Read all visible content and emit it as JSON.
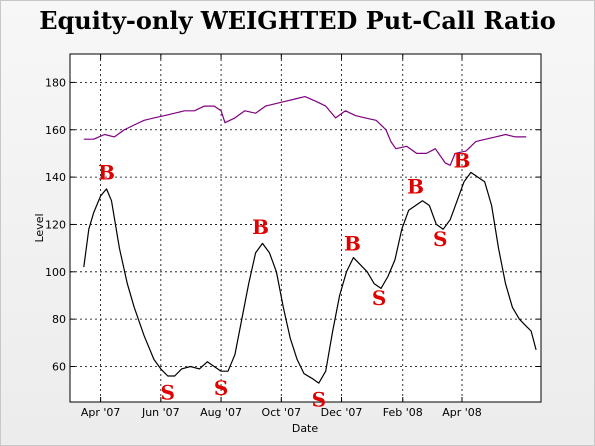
{
  "chart_data": {
    "type": "line",
    "title": "Equity-only WEIGHTED Put-Call Ratio",
    "xlabel": "Date",
    "ylabel": "Level",
    "ylim": [
      45,
      192
    ],
    "xlim": [
      "2007-03-01",
      "2008-06-20"
    ],
    "grid": true,
    "x_ticks": [
      {
        "label": "Apr '07",
        "date": "2007-04-01"
      },
      {
        "label": "Jun '07",
        "date": "2007-06-01"
      },
      {
        "label": "Aug '07",
        "date": "2007-08-01"
      },
      {
        "label": "Oct '07",
        "date": "2007-10-01"
      },
      {
        "label": "Dec '07",
        "date": "2007-12-01"
      },
      {
        "label": "Feb '08",
        "date": "2008-02-01"
      },
      {
        "label": "Apr '08",
        "date": "2008-04-01"
      }
    ],
    "y_ticks": [
      60,
      80,
      100,
      120,
      140,
      160,
      180
    ],
    "series": [
      {
        "color": "#800080",
        "points": [
          [
            "2007-03-15",
            156
          ],
          [
            "2007-03-25",
            156
          ],
          [
            "2007-04-05",
            158
          ],
          [
            "2007-04-15",
            157
          ],
          [
            "2007-04-25",
            160
          ],
          [
            "2007-05-05",
            162
          ],
          [
            "2007-05-15",
            164
          ],
          [
            "2007-05-25",
            165
          ],
          [
            "2007-06-05",
            166
          ],
          [
            "2007-06-15",
            167
          ],
          [
            "2007-06-25",
            168
          ],
          [
            "2007-07-05",
            168
          ],
          [
            "2007-07-15",
            170
          ],
          [
            "2007-07-25",
            170
          ],
          [
            "2007-08-01",
            168
          ],
          [
            "2007-08-05",
            163
          ],
          [
            "2007-08-15",
            165
          ],
          [
            "2007-08-25",
            168
          ],
          [
            "2007-09-05",
            167
          ],
          [
            "2007-09-15",
            170
          ],
          [
            "2007-09-25",
            171
          ],
          [
            "2007-10-05",
            172
          ],
          [
            "2007-10-15",
            173
          ],
          [
            "2007-10-25",
            174
          ],
          [
            "2007-11-05",
            172
          ],
          [
            "2007-11-15",
            170
          ],
          [
            "2007-11-25",
            165
          ],
          [
            "2007-12-05",
            168
          ],
          [
            "2007-12-15",
            166
          ],
          [
            "2007-12-25",
            165
          ],
          [
            "2008-01-05",
            164
          ],
          [
            "2008-01-15",
            160
          ],
          [
            "2008-01-20",
            155
          ],
          [
            "2008-01-25",
            152
          ],
          [
            "2008-02-05",
            153
          ],
          [
            "2008-02-15",
            150
          ],
          [
            "2008-02-25",
            150
          ],
          [
            "2008-03-05",
            152
          ],
          [
            "2008-03-15",
            146
          ],
          [
            "2008-03-20",
            145
          ],
          [
            "2008-03-25",
            150
          ],
          [
            "2008-04-05",
            151
          ],
          [
            "2008-04-15",
            155
          ],
          [
            "2008-04-25",
            156
          ],
          [
            "2008-05-05",
            157
          ],
          [
            "2008-05-15",
            158
          ],
          [
            "2008-05-25",
            157
          ],
          [
            "2008-06-05",
            157
          ]
        ]
      },
      {
        "color": "#000000",
        "points": [
          [
            "2007-03-15",
            102
          ],
          [
            "2007-03-20",
            118
          ],
          [
            "2007-03-25",
            125
          ],
          [
            "2007-04-01",
            132
          ],
          [
            "2007-04-07",
            135
          ],
          [
            "2007-04-12",
            130
          ],
          [
            "2007-04-20",
            110
          ],
          [
            "2007-04-28",
            95
          ],
          [
            "2007-05-05",
            85
          ],
          [
            "2007-05-15",
            73
          ],
          [
            "2007-05-25",
            63
          ],
          [
            "2007-06-01",
            59
          ],
          [
            "2007-06-08",
            56
          ],
          [
            "2007-06-15",
            56
          ],
          [
            "2007-06-22",
            59
          ],
          [
            "2007-07-01",
            60
          ],
          [
            "2007-07-10",
            59
          ],
          [
            "2007-07-18",
            62
          ],
          [
            "2007-07-25",
            60
          ],
          [
            "2007-08-01",
            58
          ],
          [
            "2007-08-08",
            58
          ],
          [
            "2007-08-15",
            65
          ],
          [
            "2007-08-22",
            80
          ],
          [
            "2007-08-29",
            95
          ],
          [
            "2007-09-05",
            108
          ],
          [
            "2007-09-12",
            112
          ],
          [
            "2007-09-19",
            108
          ],
          [
            "2007-09-26",
            100
          ],
          [
            "2007-10-03",
            85
          ],
          [
            "2007-10-10",
            72
          ],
          [
            "2007-10-17",
            63
          ],
          [
            "2007-10-24",
            57
          ],
          [
            "2007-11-01",
            55
          ],
          [
            "2007-11-08",
            53
          ],
          [
            "2007-11-15",
            58
          ],
          [
            "2007-11-22",
            75
          ],
          [
            "2007-11-29",
            90
          ],
          [
            "2007-12-06",
            100
          ],
          [
            "2007-12-13",
            106
          ],
          [
            "2007-12-20",
            103
          ],
          [
            "2007-12-27",
            100
          ],
          [
            "2008-01-03",
            95
          ],
          [
            "2008-01-10",
            93
          ],
          [
            "2008-01-17",
            98
          ],
          [
            "2008-01-24",
            105
          ],
          [
            "2008-01-31",
            118
          ],
          [
            "2008-02-07",
            126
          ],
          [
            "2008-02-14",
            128
          ],
          [
            "2008-02-21",
            130
          ],
          [
            "2008-02-28",
            128
          ],
          [
            "2008-03-06",
            120
          ],
          [
            "2008-03-13",
            118
          ],
          [
            "2008-03-20",
            122
          ],
          [
            "2008-03-27",
            130
          ],
          [
            "2008-04-03",
            138
          ],
          [
            "2008-04-10",
            142
          ],
          [
            "2008-04-17",
            140
          ],
          [
            "2008-04-24",
            138
          ],
          [
            "2008-05-01",
            128
          ],
          [
            "2008-05-08",
            110
          ],
          [
            "2008-05-15",
            95
          ],
          [
            "2008-05-22",
            85
          ],
          [
            "2008-05-29",
            80
          ],
          [
            "2008-06-05",
            77
          ],
          [
            "2008-06-10",
            75
          ],
          [
            "2008-06-15",
            67
          ]
        ]
      }
    ],
    "annotations": [
      {
        "text": "B",
        "date": "2007-04-07",
        "level": 139
      },
      {
        "text": "S",
        "date": "2007-06-08",
        "level": 46
      },
      {
        "text": "S",
        "date": "2007-08-01",
        "level": 48
      },
      {
        "text": "B",
        "date": "2007-09-10",
        "level": 116
      },
      {
        "text": "S",
        "date": "2007-11-08",
        "level": 43
      },
      {
        "text": "B",
        "date": "2007-12-12",
        "level": 109
      },
      {
        "text": "S",
        "date": "2008-01-08",
        "level": 86
      },
      {
        "text": "B",
        "date": "2008-02-14",
        "level": 133
      },
      {
        "text": "S",
        "date": "2008-03-10",
        "level": 111
      },
      {
        "text": "B",
        "date": "2008-04-01",
        "level": 144
      }
    ]
  }
}
